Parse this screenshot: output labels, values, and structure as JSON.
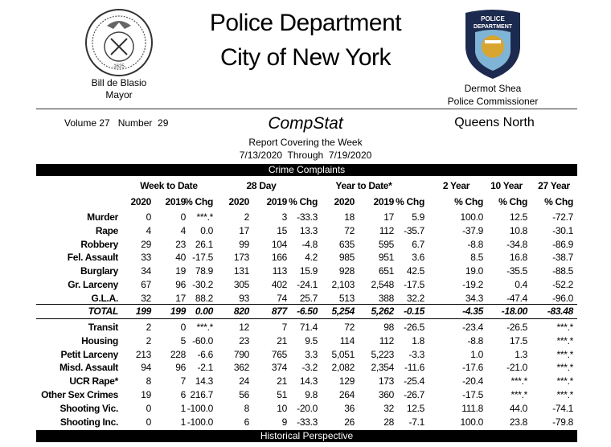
{
  "header": {
    "title_line1": "Police Department",
    "title_line2": "City of New York",
    "mayor_name": "Bill de Blasio",
    "mayor_title": "Mayor",
    "commissioner_name": "Dermot Shea",
    "commissioner_title": "Police Commissioner",
    "volume": "Volume 27   Number  29",
    "report_name": "CompStat",
    "subtitle": "Report Covering the Week",
    "date_range": "7/13/2020  Through  7/19/2020",
    "borough": "Queens North",
    "seal_text": "1625",
    "badge_text": "POLICE DEPARTMENT CITY OF NEW YORK"
  },
  "sections": {
    "crime_complaints": "Crime Complaints",
    "historical": "Historical Perspective"
  },
  "table": {
    "group_headers": [
      "Week to Date",
      "28 Day",
      "Year to Date*",
      "2 Year",
      "10 Year",
      "27 Year"
    ],
    "sub_headers": [
      "2020",
      "2019",
      "% Chg",
      "2020",
      "2019",
      "% Chg",
      "2020",
      "2019",
      "% Chg",
      "% Chg",
      "% Chg",
      "% Chg"
    ],
    "rows": [
      {
        "label": "Murder",
        "values": [
          "0",
          "0",
          "***.*",
          "2",
          "3",
          "-33.3",
          "18",
          "17",
          "5.9",
          "100.0",
          "12.5",
          "-72.7"
        ]
      },
      {
        "label": "Rape",
        "values": [
          "4",
          "4",
          "0.0",
          "17",
          "15",
          "13.3",
          "72",
          "112",
          "-35.7",
          "-37.9",
          "10.8",
          "-30.1"
        ]
      },
      {
        "label": "Robbery",
        "values": [
          "29",
          "23",
          "26.1",
          "99",
          "104",
          "-4.8",
          "635",
          "595",
          "6.7",
          "-8.8",
          "-34.8",
          "-86.9"
        ]
      },
      {
        "label": "Fel. Assault",
        "values": [
          "33",
          "40",
          "-17.5",
          "173",
          "166",
          "4.2",
          "985",
          "951",
          "3.6",
          "8.5",
          "16.8",
          "-38.7"
        ]
      },
      {
        "label": "Burglary",
        "values": [
          "34",
          "19",
          "78.9",
          "131",
          "113",
          "15.9",
          "928",
          "651",
          "42.5",
          "19.0",
          "-35.5",
          "-88.5"
        ]
      },
      {
        "label": "Gr. Larceny",
        "values": [
          "67",
          "96",
          "-30.2",
          "305",
          "402",
          "-24.1",
          "2,103",
          "2,548",
          "-17.5",
          "-19.2",
          "0.4",
          "-52.2"
        ]
      },
      {
        "label": "G.L.A.",
        "values": [
          "32",
          "17",
          "88.2",
          "93",
          "74",
          "25.7",
          "513",
          "388",
          "32.2",
          "34.3",
          "-47.4",
          "-96.0"
        ]
      }
    ],
    "total": {
      "label": "TOTAL",
      "values": [
        "199",
        "199",
        "0.00",
        "820",
        "877",
        "-6.50",
        "5,254",
        "5,262",
        "-0.15",
        "-4.35",
        "-18.00",
        "-83.48"
      ]
    },
    "other_rows": [
      {
        "label": "Transit",
        "values": [
          "2",
          "0",
          "***.*",
          "12",
          "7",
          "71.4",
          "72",
          "98",
          "-26.5",
          "-23.4",
          "-26.5",
          "***.*"
        ]
      },
      {
        "label": "Housing",
        "values": [
          "2",
          "5",
          "-60.0",
          "23",
          "21",
          "9.5",
          "114",
          "112",
          "1.8",
          "-8.8",
          "17.5",
          "***.*"
        ]
      },
      {
        "label": "Petit Larceny",
        "values": [
          "213",
          "228",
          "-6.6",
          "790",
          "765",
          "3.3",
          "5,051",
          "5,223",
          "-3.3",
          "1.0",
          "1.3",
          "***.*"
        ]
      },
      {
        "label": "Misd. Assault",
        "values": [
          "94",
          "96",
          "-2.1",
          "362",
          "374",
          "-3.2",
          "2,082",
          "2,354",
          "-11.6",
          "-17.6",
          "-21.0",
          "***.*"
        ]
      },
      {
        "label": "UCR Rape*",
        "values": [
          "8",
          "7",
          "14.3",
          "24",
          "21",
          "14.3",
          "129",
          "173",
          "-25.4",
          "-20.4",
          "***.*",
          "***.*"
        ]
      },
      {
        "label": "Other Sex Crimes",
        "values": [
          "19",
          "6",
          "216.7",
          "56",
          "51",
          "9.8",
          "264",
          "360",
          "-26.7",
          "-17.5",
          "***.*",
          "***.*"
        ]
      },
      {
        "label": "Shooting Vic.",
        "values": [
          "0",
          "1",
          "-100.0",
          "8",
          "10",
          "-20.0",
          "36",
          "32",
          "12.5",
          "111.8",
          "44.0",
          "-74.1"
        ]
      },
      {
        "label": "Shooting Inc.",
        "values": [
          "0",
          "1",
          "-100.0",
          "6",
          "9",
          "-33.3",
          "26",
          "28",
          "-7.1",
          "100.0",
          "23.8",
          "-79.8"
        ]
      }
    ]
  }
}
